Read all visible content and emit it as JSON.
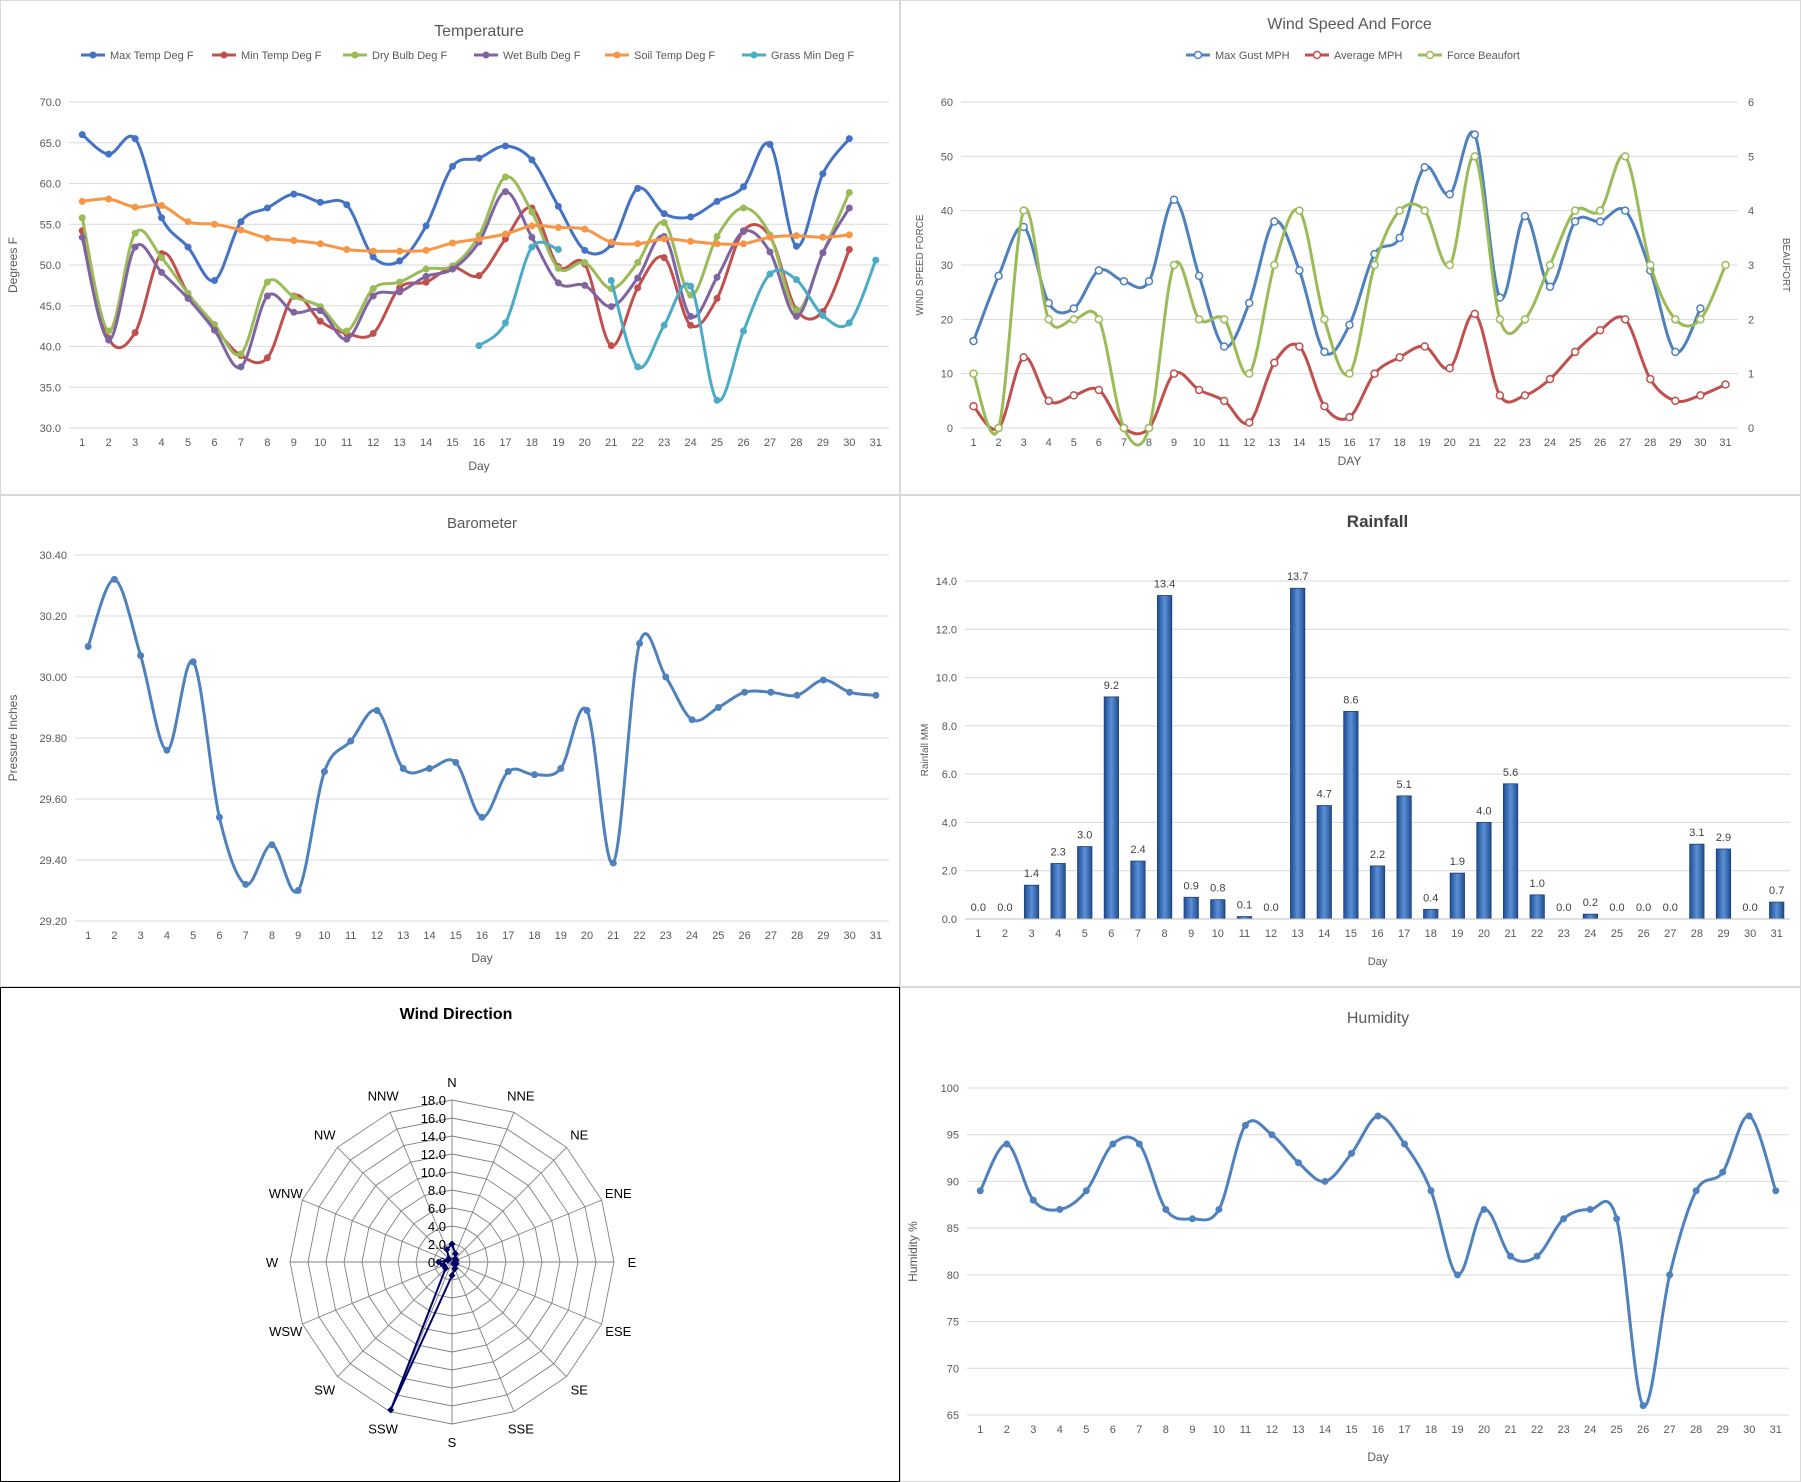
{
  "days": [
    1,
    2,
    3,
    4,
    5,
    6,
    7,
    8,
    9,
    10,
    11,
    12,
    13,
    14,
    15,
    16,
    17,
    18,
    19,
    20,
    21,
    22,
    23,
    24,
    25,
    26,
    27,
    28,
    29,
    30,
    31
  ],
  "temperature": {
    "type": "line",
    "title": "Temperature",
    "xlabel": "Day",
    "ylabel": "Degrees F",
    "ylim": [
      30,
      70
    ],
    "yticks": [
      "30.0",
      "35.0",
      "40.0",
      "45.0",
      "50.0",
      "55.0",
      "60.0",
      "65.0",
      "70.0"
    ],
    "series": [
      {
        "name": "Max Temp Deg F",
        "color": "#4472c4",
        "values": [
          66.0,
          63.6,
          65.5,
          55.8,
          52.2,
          48.1,
          55.3,
          57.0,
          58.7,
          57.7,
          57.4,
          51.0,
          50.5,
          54.8,
          62.1,
          63.1,
          64.6,
          62.9,
          57.2,
          51.8,
          52.5,
          59.4,
          56.3,
          55.9,
          57.8,
          59.6,
          64.8,
          52.3,
          61.2,
          65.5,
          null
        ]
      },
      {
        "name": "Min Temp Deg F",
        "color": "#c0504d",
        "values": [
          54.2,
          41.0,
          41.7,
          51.4,
          46.5,
          42.3,
          38.9,
          38.6,
          46.2,
          43.1,
          41.6,
          41.6,
          47.2,
          47.9,
          49.7,
          48.7,
          53.2,
          57.0,
          49.8,
          50.1,
          40.1,
          47.2,
          50.9,
          42.6,
          45.9,
          54.2,
          53.5,
          44.5,
          44.3,
          51.9,
          null
        ]
      },
      {
        "name": "Dry Bulb Deg F",
        "color": "#9bbb59",
        "values": [
          55.8,
          41.9,
          53.9,
          50.9,
          46.5,
          42.7,
          39.1,
          47.9,
          46.1,
          44.9,
          41.9,
          47.1,
          47.9,
          49.5,
          49.9,
          53.6,
          60.8,
          56.5,
          49.6,
          50.3,
          47.1,
          50.3,
          55.2,
          46.3,
          53.5,
          57.0,
          53.7,
          44.4,
          51.5,
          58.9,
          null
        ]
      },
      {
        "name": "Wet Bulb Deg F",
        "color": "#8064a2",
        "values": [
          53.4,
          40.8,
          52.2,
          49.1,
          45.9,
          42.0,
          37.5,
          46.2,
          44.2,
          44.4,
          40.9,
          46.2,
          46.7,
          48.6,
          49.5,
          52.8,
          59.0,
          53.4,
          47.8,
          47.5,
          44.9,
          48.4,
          53.5,
          43.7,
          48.5,
          54.1,
          51.6,
          43.7,
          51.5,
          57.0,
          null
        ]
      },
      {
        "name": "Soil Temp Deg F",
        "color": "#f79646",
        "values": [
          57.8,
          58.1,
          57.1,
          57.3,
          55.3,
          55.0,
          54.3,
          53.3,
          53.0,
          52.6,
          51.9,
          51.7,
          51.7,
          51.8,
          52.7,
          53.2,
          53.8,
          54.8,
          54.6,
          54.4,
          52.8,
          52.6,
          53.2,
          52.9,
          52.6,
          52.6,
          53.4,
          53.6,
          53.4,
          53.7,
          null
        ]
      },
      {
        "name": "Grass Min Deg F",
        "color": "#4bacc6",
        "values": [
          null,
          null,
          null,
          null,
          null,
          null,
          null,
          null,
          null,
          null,
          null,
          null,
          null,
          null,
          null,
          40.1,
          42.9,
          52.2,
          51.9,
          null,
          48.1,
          37.5,
          42.6,
          47.4,
          33.4,
          41.9,
          48.9,
          48.2,
          43.8,
          42.9,
          50.6
        ]
      }
    ]
  },
  "wind_speed": {
    "type": "line",
    "title": "Wind Speed  And Force",
    "xlabel": "DAY",
    "ylabel": "WIND SPEED FORCE",
    "ylabel_right": "BEAUFORT",
    "ylim": [
      0,
      60
    ],
    "ylim_right": [
      0,
      6
    ],
    "yticks": [
      "0",
      "10",
      "20",
      "30",
      "40",
      "50",
      "60"
    ],
    "yticks_right": [
      "0",
      "1",
      "2",
      "3",
      "4",
      "5",
      "6"
    ],
    "series": [
      {
        "name": "Max Gust MPH",
        "color": "#4f81bd",
        "axis": "left",
        "values": [
          16,
          28,
          37,
          23,
          22,
          29,
          27,
          27,
          42,
          28,
          15,
          23,
          38,
          29,
          14,
          19,
          32,
          35,
          48,
          43,
          54,
          24,
          39,
          26,
          38,
          38,
          40,
          29,
          14,
          22,
          null
        ]
      },
      {
        "name": "Average MPH",
        "color": "#c0504d",
        "axis": "left",
        "values": [
          4,
          0,
          13,
          5,
          6,
          7,
          0,
          0,
          10,
          7,
          5,
          1,
          12,
          15,
          4,
          2,
          10,
          13,
          15,
          11,
          21,
          6,
          6,
          9,
          14,
          18,
          20,
          9,
          5,
          6,
          8
        ]
      },
      {
        "name": "Force Beaufort",
        "color": "#9bbb59",
        "axis": "right",
        "values": [
          1,
          0,
          4,
          2,
          2,
          2,
          0,
          0,
          3,
          2,
          2,
          1,
          3,
          4,
          2,
          1,
          3,
          4,
          4,
          3,
          5,
          2,
          2,
          3,
          4,
          4,
          5,
          3,
          2,
          2,
          3
        ]
      }
    ]
  },
  "barometer": {
    "type": "line",
    "title": "Barometer",
    "xlabel": "Day",
    "ylabel": "Pressure Inches",
    "ylim": [
      29.2,
      30.4
    ],
    "yticks": [
      "29.20",
      "29.40",
      "29.60",
      "29.80",
      "30.00",
      "30.20",
      "30.40"
    ],
    "series": [
      {
        "name": "",
        "color": "#4f81bd",
        "values": [
          30.1,
          30.32,
          30.07,
          29.76,
          30.05,
          29.54,
          29.32,
          29.45,
          29.3,
          29.69,
          29.79,
          29.89,
          29.7,
          29.7,
          29.72,
          29.54,
          29.69,
          29.68,
          29.7,
          29.89,
          29.39,
          30.11,
          30.0,
          29.86,
          29.9,
          29.95,
          29.95,
          29.94,
          29.99,
          29.95,
          29.94
        ]
      }
    ]
  },
  "rainfall": {
    "type": "bar",
    "title": "Rainfall",
    "xlabel": "Day",
    "ylabel": "Rainfall MM",
    "ylim": [
      0,
      14
    ],
    "yticks": [
      "0.0",
      "2.0",
      "4.0",
      "6.0",
      "8.0",
      "10.0",
      "12.0",
      "14.0"
    ],
    "values": [
      0.0,
      0.0,
      1.4,
      2.3,
      3.0,
      9.2,
      2.4,
      13.4,
      0.9,
      0.8,
      0.1,
      0.0,
      13.7,
      4.7,
      8.6,
      2.2,
      5.1,
      0.4,
      1.9,
      4.0,
      5.6,
      1.0,
      0.0,
      0.2,
      0.0,
      0.0,
      0.0,
      3.1,
      2.9,
      0.0,
      0.7
    ],
    "labels": [
      "0.0",
      "0.0",
      "1.4",
      "2.3",
      "3.0",
      "9.2",
      "2.4",
      "13.4",
      "0.9",
      "0.8",
      "0.1",
      "0.0",
      "13.7",
      "4.7",
      "8.6",
      "2.2",
      "5.1",
      "0.4",
      "1.9",
      "4.0",
      "5.6",
      "1.0",
      "0.0",
      "0.2",
      "0.0",
      "0.0",
      "0.0",
      "3.1",
      "2.9",
      "0.0",
      "0.7"
    ],
    "color": "#2e67b1"
  },
  "wind_direction": {
    "type": "radar",
    "title": "Wind Direction",
    "rmax": 18,
    "rticks": [
      "0.0",
      "2.0",
      "4.0",
      "6.0",
      "8.0",
      "10.0",
      "12.0",
      "14.0",
      "16.0",
      "18.0"
    ],
    "directions": [
      "N",
      "NNE",
      "NE",
      "ENE",
      "E",
      "ESE",
      "SE",
      "SSE",
      "S",
      "SSW",
      "SW",
      "WSW",
      "W",
      "WNW",
      "NW",
      "NNW"
    ],
    "values": [
      2.0,
      1.0,
      0.5,
      0.5,
      0.3,
      0.5,
      0.3,
      0.8,
      1.5,
      17.8,
      1.0,
      1.0,
      1.5,
      0.5,
      0.5,
      1.5
    ],
    "color": "#000066"
  },
  "humidity": {
    "type": "line",
    "title": "Humidity",
    "xlabel": "Day",
    "ylabel": "Humidity %",
    "ylim": [
      65,
      100
    ],
    "yticks": [
      "65",
      "70",
      "75",
      "80",
      "85",
      "90",
      "95",
      "100"
    ],
    "series": [
      {
        "name": "",
        "color": "#4f81bd",
        "values": [
          89,
          94,
          88,
          87,
          89,
          94,
          94,
          87,
          86,
          87,
          96,
          95,
          92,
          90,
          93,
          97,
          94,
          89,
          80,
          87,
          82,
          82,
          86,
          87,
          86,
          66,
          80,
          89,
          91,
          97,
          89
        ]
      }
    ]
  }
}
